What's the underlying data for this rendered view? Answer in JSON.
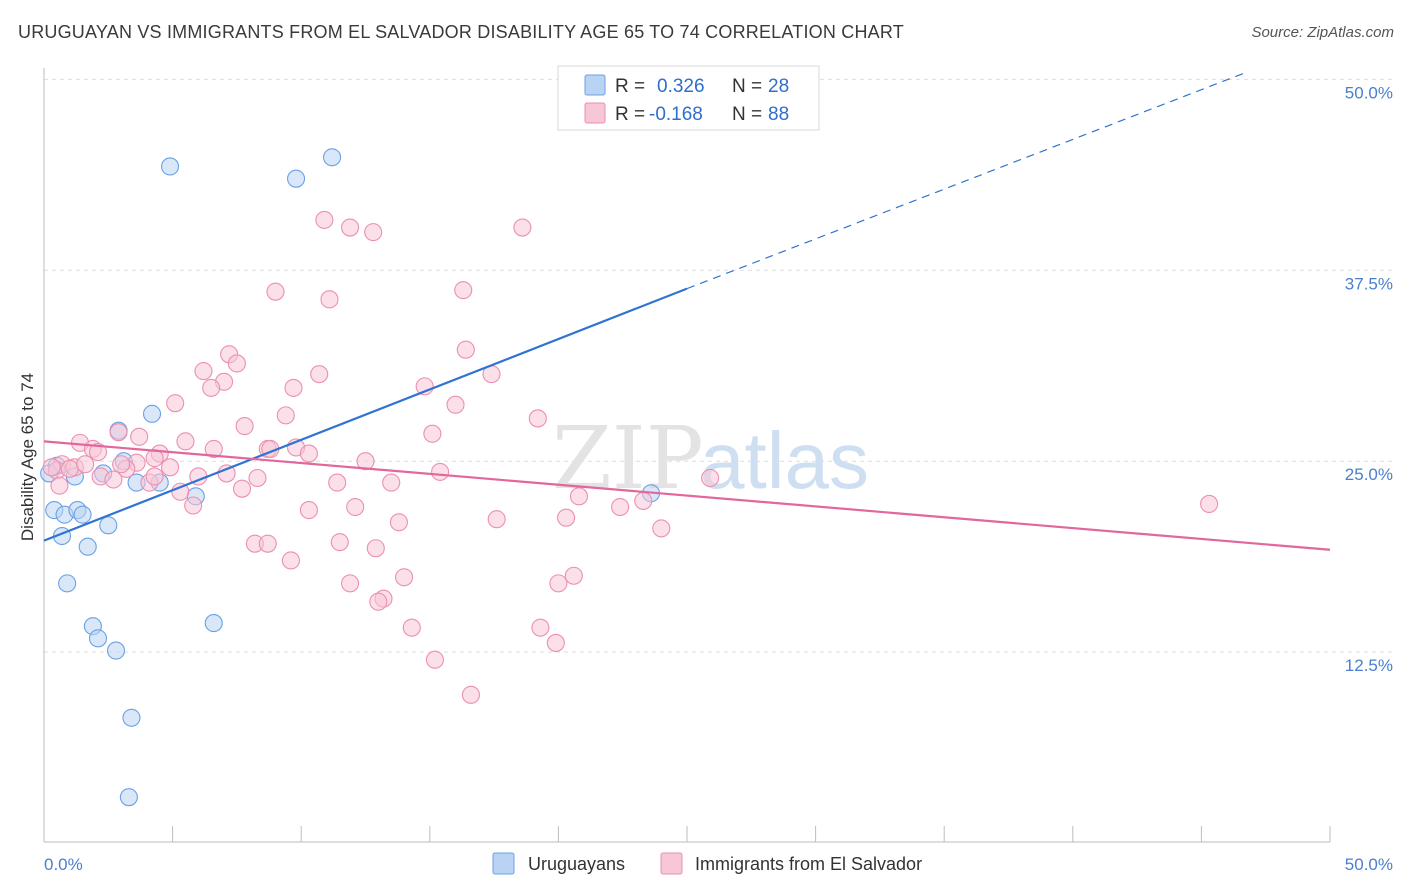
{
  "title": "URUGUAYAN VS IMMIGRANTS FROM EL SALVADOR DISABILITY AGE 65 TO 74 CORRELATION CHART",
  "source": "Source: ZipAtlas.com",
  "watermark": {
    "zip": "ZIP",
    "atlas": "atlas"
  },
  "chart_data": {
    "type": "scatter",
    "title": "URUGUAYAN VS IMMIGRANTS FROM EL SALVADOR DISABILITY AGE 65 TO 74 CORRELATION CHART",
    "xlabel": "",
    "ylabel": "Disability Age 65 to 74",
    "xlim": [
      0,
      50
    ],
    "ylim": [
      0,
      50
    ],
    "x_tick_labels": [
      "0.0%",
      "50.0%"
    ],
    "y_ticks": [
      {
        "value": 12.5,
        "label": "12.5%"
      },
      {
        "value": 25.0,
        "label": "25.0%"
      },
      {
        "value": 37.5,
        "label": "37.5%"
      },
      {
        "value": 50.0,
        "label": "50.0%"
      }
    ],
    "grid": true,
    "legend_position": "top-center",
    "series": [
      {
        "name": "Uruguayans",
        "color": "#6aa1e6",
        "fill": "#b9d3f3",
        "trend_color": "#2f74d0",
        "R": "0.326",
        "N": "28",
        "trend": {
          "x0": 0,
          "y0": 19.8,
          "x1": 25,
          "y1": 36.3,
          "x_dash_end": 46.8,
          "y_dash_end": 50.5
        },
        "points": [
          [
            4.9,
            44.3
          ],
          [
            11.2,
            44.9
          ],
          [
            9.8,
            43.5
          ],
          [
            4.2,
            28.1
          ],
          [
            2.9,
            27.0
          ],
          [
            3.1,
            25.0
          ],
          [
            0.5,
            24.7
          ],
          [
            2.3,
            24.2
          ],
          [
            3.6,
            23.6
          ],
          [
            4.5,
            23.6
          ],
          [
            5.9,
            22.7
          ],
          [
            0.4,
            21.8
          ],
          [
            0.8,
            21.5
          ],
          [
            1.3,
            21.8
          ],
          [
            1.5,
            21.5
          ],
          [
            2.5,
            20.8
          ],
          [
            0.7,
            20.1
          ],
          [
            1.7,
            19.4
          ],
          [
            0.9,
            17.0
          ],
          [
            1.9,
            14.2
          ],
          [
            2.1,
            13.4
          ],
          [
            2.8,
            12.6
          ],
          [
            6.6,
            14.4
          ],
          [
            3.4,
            8.2
          ],
          [
            3.3,
            3.0
          ],
          [
            23.6,
            22.9
          ],
          [
            0.2,
            24.2
          ],
          [
            1.2,
            24.0
          ]
        ]
      },
      {
        "name": "Immigrants from El Salvador",
        "color": "#ec8fb0",
        "fill": "#f7c6d7",
        "trend_color": "#e2679a",
        "R": "-0.168",
        "N": "88",
        "trend": {
          "x0": 0,
          "y0": 26.3,
          "x1": 50,
          "y1": 19.2
        },
        "points": [
          [
            10.9,
            40.8
          ],
          [
            11.9,
            40.3
          ],
          [
            12.8,
            40.0
          ],
          [
            18.6,
            40.3
          ],
          [
            9.0,
            36.1
          ],
          [
            11.1,
            35.6
          ],
          [
            16.3,
            36.2
          ],
          [
            7.2,
            32.0
          ],
          [
            7.5,
            31.4
          ],
          [
            6.2,
            30.9
          ],
          [
            16.4,
            32.3
          ],
          [
            17.4,
            30.7
          ],
          [
            10.7,
            30.7
          ],
          [
            7.0,
            30.2
          ],
          [
            6.5,
            29.8
          ],
          [
            9.7,
            29.8
          ],
          [
            14.8,
            29.9
          ],
          [
            5.1,
            28.8
          ],
          [
            16.0,
            28.7
          ],
          [
            9.4,
            28.0
          ],
          [
            7.8,
            27.3
          ],
          [
            19.2,
            27.8
          ],
          [
            2.9,
            26.9
          ],
          [
            3.7,
            26.6
          ],
          [
            5.5,
            26.3
          ],
          [
            15.1,
            26.8
          ],
          [
            1.4,
            26.2
          ],
          [
            1.9,
            25.8
          ],
          [
            2.1,
            25.6
          ],
          [
            4.5,
            25.5
          ],
          [
            6.6,
            25.8
          ],
          [
            8.7,
            25.8
          ],
          [
            8.8,
            25.8
          ],
          [
            9.8,
            25.9
          ],
          [
            10.3,
            25.5
          ],
          [
            4.3,
            25.2
          ],
          [
            3.6,
            24.9
          ],
          [
            4.9,
            24.6
          ],
          [
            12.5,
            25.0
          ],
          [
            0.7,
            24.8
          ],
          [
            1.2,
            24.6
          ],
          [
            0.5,
            24.4
          ],
          [
            2.2,
            24.0
          ],
          [
            2.7,
            23.8
          ],
          [
            6.0,
            24.0
          ],
          [
            7.1,
            24.2
          ],
          [
            8.3,
            23.9
          ],
          [
            15.4,
            24.3
          ],
          [
            13.5,
            23.6
          ],
          [
            11.4,
            23.6
          ],
          [
            4.1,
            23.6
          ],
          [
            4.3,
            24.0
          ],
          [
            5.3,
            23.0
          ],
          [
            7.7,
            23.2
          ],
          [
            20.8,
            22.7
          ],
          [
            25.9,
            23.9
          ],
          [
            5.8,
            22.1
          ],
          [
            10.3,
            21.8
          ],
          [
            12.1,
            22.0
          ],
          [
            17.6,
            21.2
          ],
          [
            20.3,
            21.3
          ],
          [
            23.3,
            22.4
          ],
          [
            24.0,
            20.6
          ],
          [
            13.8,
            21.0
          ],
          [
            8.2,
            19.6
          ],
          [
            8.7,
            19.6
          ],
          [
            11.5,
            19.7
          ],
          [
            12.9,
            19.3
          ],
          [
            9.6,
            18.5
          ],
          [
            14.0,
            17.4
          ],
          [
            11.9,
            17.0
          ],
          [
            13.2,
            16.0
          ],
          [
            20.0,
            17.0
          ],
          [
            20.6,
            17.5
          ],
          [
            13.0,
            15.8
          ],
          [
            14.3,
            14.1
          ],
          [
            19.3,
            14.1
          ],
          [
            19.9,
            13.1
          ],
          [
            15.2,
            12.0
          ],
          [
            16.6,
            9.7
          ],
          [
            45.3,
            22.2
          ],
          [
            0.3,
            24.6
          ],
          [
            0.6,
            23.4
          ],
          [
            1.0,
            24.5
          ],
          [
            1.6,
            24.8
          ],
          [
            3.2,
            24.5
          ],
          [
            22.4,
            22.0
          ],
          [
            3.0,
            24.8
          ]
        ]
      }
    ]
  },
  "legend": {
    "items": [
      {
        "r_label": "R =",
        "r_value": "0.326",
        "n_label": "N =",
        "n_value": "28"
      },
      {
        "r_label": "R =",
        "r_value": "-0.168",
        "n_label": "N =",
        "n_value": "88"
      }
    ]
  },
  "bottom_legend": [
    "Uruguayans",
    "Immigrants from El Salvador"
  ]
}
